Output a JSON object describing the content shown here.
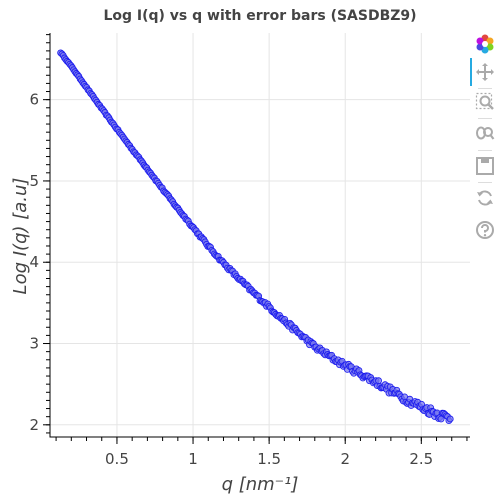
{
  "chart_data": {
    "type": "scatter",
    "title": "Log I(q) vs q with error bars (SASDBZ9)",
    "xlabel": "q [nm⁻¹]",
    "ylabel": "Log I(q) [a.u]",
    "xlim": [
      0.06,
      2.82
    ],
    "ylim": [
      1.85,
      6.82
    ],
    "x_ticks": [
      0.5,
      1,
      1.5,
      2,
      2.5
    ],
    "x_tick_labels": [
      "0.5",
      "1",
      "1.5",
      "2",
      "2.5"
    ],
    "y_ticks": [
      2,
      3,
      4,
      5,
      6
    ],
    "y_tick_labels": [
      "2",
      "3",
      "4",
      "5",
      "6"
    ],
    "grid": true,
    "marker_fill": "#7777ee",
    "marker_stroke": "#1a1aee",
    "q_range": [
      0.13,
      2.69
    ],
    "n_points": 300,
    "curve": {
      "q": [
        0.13,
        0.2,
        0.3,
        0.4,
        0.5,
        0.6,
        0.7,
        0.8,
        0.9,
        1.0,
        1.1,
        1.2,
        1.3,
        1.4,
        1.5,
        1.6,
        1.7,
        1.8,
        1.9,
        2.0,
        2.1,
        2.2,
        2.3,
        2.4,
        2.5,
        2.6,
        2.69
      ],
      "logI": [
        6.58,
        6.41,
        6.15,
        5.89,
        5.64,
        5.39,
        5.15,
        4.9,
        4.66,
        4.43,
        4.2,
        3.99,
        3.8,
        3.62,
        3.45,
        3.28,
        3.12,
        2.96,
        2.84,
        2.73,
        2.63,
        2.53,
        2.42,
        2.32,
        2.22,
        2.14,
        2.08
      ]
    }
  },
  "toolbar": {
    "items": [
      {
        "name": "bokeh-logo-icon"
      },
      {
        "name": "pan-tool-icon"
      },
      {
        "name": "box-zoom-tool-icon"
      },
      {
        "name": "wheel-zoom-tool-icon"
      },
      {
        "name": "save-tool-icon"
      },
      {
        "name": "reset-tool-icon"
      },
      {
        "name": "help-tool-icon"
      }
    ]
  }
}
